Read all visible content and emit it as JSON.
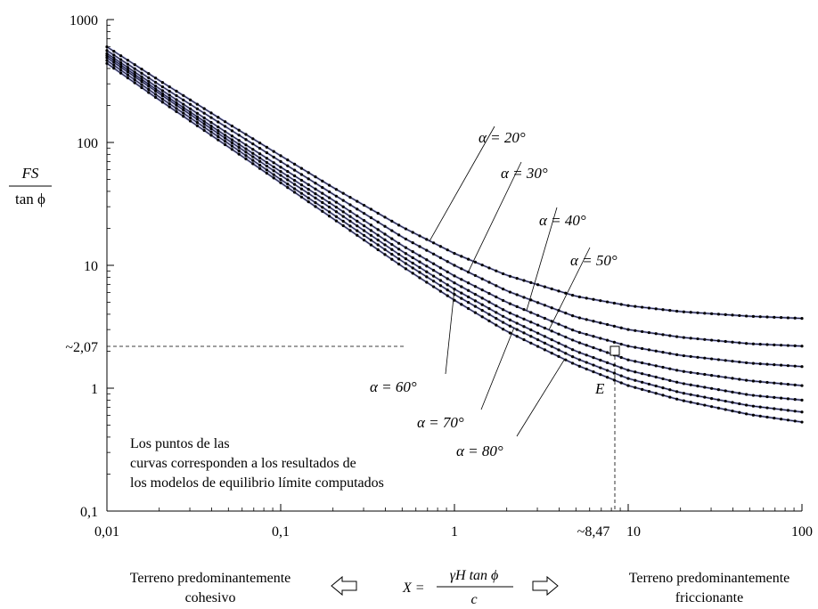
{
  "chart_data": {
    "type": "line",
    "xscale": "log",
    "yscale": "log",
    "xlim": [
      0.01,
      100
    ],
    "ylim": [
      0.1,
      1000
    ],
    "x_ticks": [
      "0,01",
      "0,1",
      "1",
      "10",
      "100"
    ],
    "y_ticks": [
      "0,1",
      "1",
      "10",
      "100",
      "1000"
    ],
    "y_label_num": "FS",
    "y_label_den": "tan ϕ",
    "series": [
      {
        "name": "α = 20°",
        "x": [
          0.01,
          0.02,
          0.05,
          0.1,
          0.2,
          0.5,
          1,
          2,
          5,
          10,
          20,
          50,
          100
        ],
        "y": [
          600,
          320,
          142,
          78,
          43,
          20.5,
          12.5,
          8.3,
          5.6,
          4.7,
          4.2,
          3.85,
          3.7
        ]
      },
      {
        "name": "α = 30°",
        "x": [
          0.01,
          0.02,
          0.05,
          0.1,
          0.2,
          0.5,
          1,
          2,
          5,
          10,
          20,
          50,
          100
        ],
        "y": [
          560,
          295,
          130,
          70,
          38,
          17,
          10,
          6.2,
          3.8,
          3.0,
          2.6,
          2.3,
          2.2
        ]
      },
      {
        "name": "α = 40°",
        "x": [
          0.01,
          0.02,
          0.05,
          0.1,
          0.2,
          0.5,
          1,
          2,
          5,
          10,
          20,
          50,
          100
        ],
        "y": [
          530,
          275,
          118,
          63,
          34,
          14.5,
          8.2,
          5.0,
          2.9,
          2.2,
          1.85,
          1.6,
          1.5
        ]
      },
      {
        "name": "α = 50°",
        "x": [
          0.01,
          0.02,
          0.05,
          0.1,
          0.2,
          0.5,
          1,
          2,
          5,
          10,
          20,
          50,
          100
        ],
        "y": [
          510,
          260,
          110,
          58,
          31,
          13,
          7.2,
          4.2,
          2.4,
          1.7,
          1.38,
          1.15,
          1.05
        ]
      },
      {
        "name": "α = 60°",
        "x": [
          0.01,
          0.02,
          0.05,
          0.1,
          0.2,
          0.5,
          1,
          2,
          5,
          10,
          20,
          50,
          100
        ],
        "y": [
          490,
          250,
          104,
          54,
          28.5,
          11.8,
          6.4,
          3.7,
          2.0,
          1.4,
          1.1,
          0.88,
          0.8
        ]
      },
      {
        "name": "α = 70°",
        "x": [
          0.01,
          0.02,
          0.05,
          0.1,
          0.2,
          0.5,
          1,
          2,
          5,
          10,
          20,
          50,
          100
        ],
        "y": [
          465,
          235,
          98,
          50,
          26,
          10.8,
          5.8,
          3.3,
          1.75,
          1.2,
          0.92,
          0.72,
          0.64
        ]
      },
      {
        "name": "α = 80°",
        "x": [
          0.01,
          0.02,
          0.05,
          0.1,
          0.2,
          0.5,
          1,
          2,
          5,
          10,
          20,
          50,
          100
        ],
        "y": [
          440,
          222,
          92,
          47,
          24,
          9.8,
          5.2,
          2.9,
          1.55,
          1.05,
          0.8,
          0.61,
          0.53
        ]
      }
    ],
    "reference_point": {
      "label": "E",
      "x": 8.47,
      "y": 2.07,
      "x_label": "~8,47",
      "y_label": "~2,07"
    },
    "note": "Los puntos de las curvas corresponden a los resultados de los modelos de equilibrio límite computados",
    "x_formula": {
      "lhs": "X =",
      "num": "γH tan ϕ",
      "den": "c"
    },
    "left_caption": [
      "Terreno predominantemente",
      "cohesivo"
    ],
    "right_caption": [
      "Terreno predominantemente",
      "friccionante"
    ]
  }
}
